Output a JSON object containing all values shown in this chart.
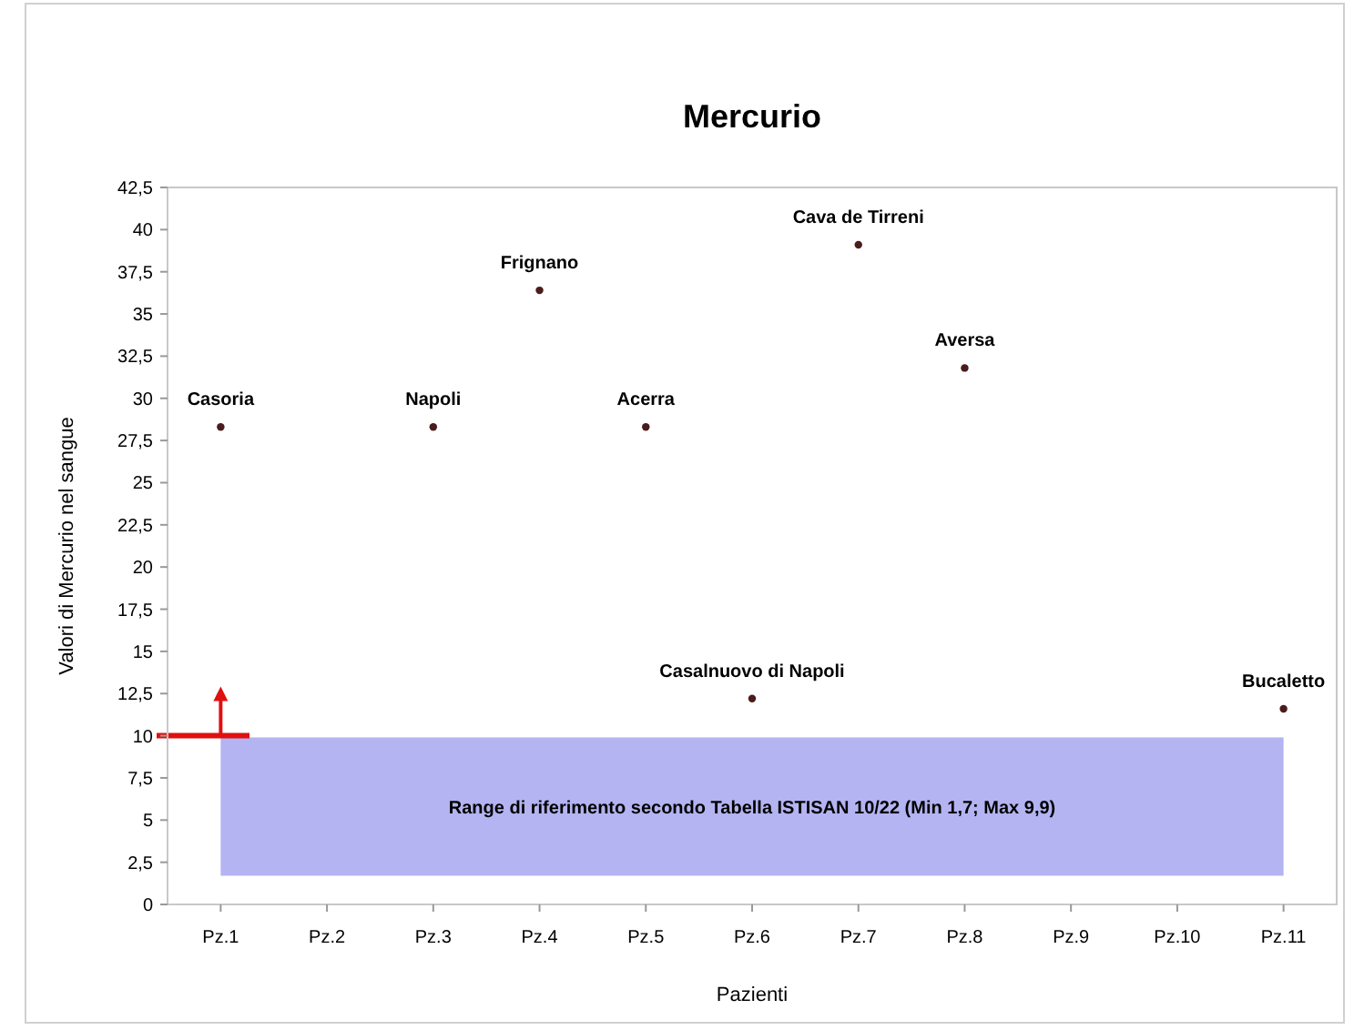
{
  "chart_data": {
    "type": "scatter",
    "title": "Mercurio",
    "xlabel": "Pazienti",
    "ylabel": "Valori di Mercurio nel sangue",
    "categories": [
      "Pz.1",
      "Pz.2",
      "Pz.3",
      "Pz.4",
      "Pz.5",
      "Pz.6",
      "Pz.7",
      "Pz.8",
      "Pz.9",
      "Pz.10",
      "Pz.11"
    ],
    "series": [
      {
        "color": "#4a1c1c",
        "x": [
          "Pz.1",
          "Pz.3",
          "Pz.4",
          "Pz.5",
          "Pz.6",
          "Pz.7",
          "Pz.8",
          "Pz.11"
        ],
        "values": [
          28.3,
          28.3,
          36.4,
          28.3,
          12.2,
          39.1,
          31.8,
          11.6
        ]
      }
    ],
    "marker": "circle",
    "grid": false,
    "ylim": [
      0,
      42.5
    ],
    "yticks": [
      {
        "value": 0,
        "label": "0"
      },
      {
        "value": 2.5,
        "label": "2,5"
      },
      {
        "value": 5,
        "label": "5"
      },
      {
        "value": 7.5,
        "label": "7,5"
      },
      {
        "value": 10,
        "label": "10"
      },
      {
        "value": 12.5,
        "label": "12,5"
      },
      {
        "value": 15,
        "label": "15"
      },
      {
        "value": 17.5,
        "label": "17,5"
      },
      {
        "value": 20,
        "label": "20"
      },
      {
        "value": 22.5,
        "label": "22,5"
      },
      {
        "value": 25,
        "label": "25"
      },
      {
        "value": 27.5,
        "label": "27,5"
      },
      {
        "value": 30,
        "label": "30"
      },
      {
        "value": 32.5,
        "label": "32,5"
      },
      {
        "value": 35,
        "label": "35"
      },
      {
        "value": 37.5,
        "label": "37,5"
      },
      {
        "value": 40,
        "label": "40"
      },
      {
        "value": 42.5,
        "label": "42,5"
      }
    ],
    "bands": [
      {
        "axis": "y",
        "from": 1.7,
        "to": 9.9,
        "label": "Range di riferimento secondo Tabella ISTISAN 10/22 (Min 1,7; Max 9,9)",
        "color": "#b4b4f2"
      }
    ],
    "annotations": [
      {
        "text": "Casoria",
        "x": "Pz.1",
        "y": 28.3
      },
      {
        "text": "Napoli",
        "x": "Pz.3",
        "y": 28.3
      },
      {
        "text": "Frignano",
        "x": "Pz.4",
        "y": 36.4
      },
      {
        "text": "Acerra",
        "x": "Pz.5",
        "y": 28.3
      },
      {
        "text": "Casalnuovo di Napoli",
        "x": "Pz.6",
        "y": 12.2
      },
      {
        "text": "Cava de Tirreni",
        "x": "Pz.7",
        "y": 39.1
      },
      {
        "text": "Aversa",
        "x": "Pz.8",
        "y": 31.8
      },
      {
        "text": "Bucaletto",
        "x": "Pz.11",
        "y": 11.6
      }
    ]
  }
}
